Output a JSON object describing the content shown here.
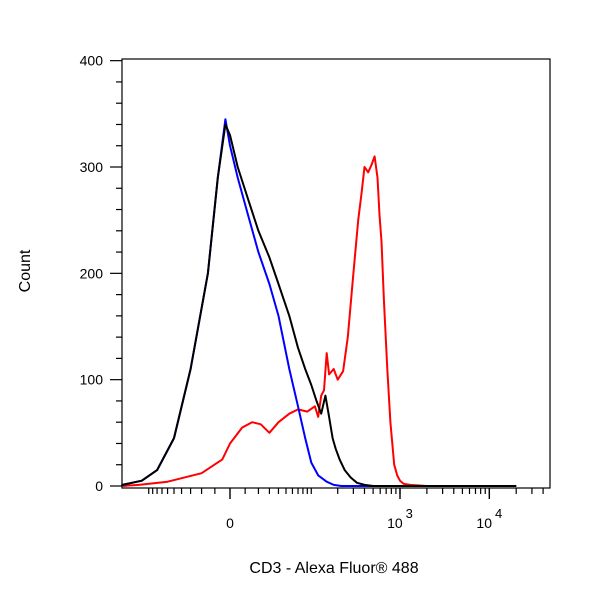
{
  "chart_data": {
    "type": "line",
    "title": "",
    "xlabel": "CD3 - Alexa Fluor® 488",
    "ylabel": "Count",
    "x_scale": "biexponential",
    "x_ticks": [
      {
        "value": 0,
        "base": "0",
        "exp": ""
      },
      {
        "value": 1000,
        "base": "10",
        "exp": "3"
      },
      {
        "value": 10000,
        "base": "10",
        "exp": "4"
      }
    ],
    "ylim": [
      0,
      400
    ],
    "y_ticks": [
      "0",
      "100",
      "200",
      "300",
      "400"
    ],
    "grid": false,
    "legend": "none",
    "series": [
      {
        "color": "#ff0000",
        "x": [
          -500,
          -130,
          -60,
          -20,
          -5,
          0,
          8,
          15,
          22,
          30,
          40,
          55,
          70,
          90,
          110,
          120,
          130,
          140,
          150,
          160,
          180,
          200,
          230,
          260,
          300,
          340,
          370,
          400,
          440,
          480,
          520,
          560,
          590,
          620,
          660,
          720,
          780,
          860,
          930,
          1000,
          1100,
          1300,
          2000,
          20000
        ],
        "y": [
          0,
          1,
          4,
          12,
          25,
          40,
          55,
          60,
          58,
          50,
          60,
          68,
          72,
          70,
          75,
          65,
          85,
          90,
          125,
          105,
          110,
          100,
          108,
          140,
          200,
          250,
          275,
          300,
          295,
          302,
          310,
          290,
          255,
          230,
          175,
          110,
          60,
          20,
          10,
          5,
          2,
          1,
          0,
          0
        ]
      },
      {
        "color": "#0000ff",
        "x": [
          -500,
          -200,
          -120,
          -80,
          -50,
          -30,
          -15,
          -8,
          -3,
          0,
          5,
          12,
          20,
          30,
          40,
          55,
          70,
          85,
          100,
          120,
          150,
          180,
          220,
          300,
          20000
        ],
        "y": [
          0,
          1,
          5,
          15,
          45,
          110,
          200,
          290,
          345,
          320,
          290,
          255,
          220,
          190,
          160,
          110,
          75,
          45,
          22,
          10,
          4,
          1,
          0,
          0,
          0
        ]
      },
      {
        "color": "#000000",
        "x": [
          -500,
          -200,
          -120,
          -80,
          -50,
          -30,
          -15,
          -8,
          -3,
          0,
          5,
          12,
          20,
          30,
          40,
          55,
          70,
          85,
          100,
          115,
          130,
          145,
          160,
          175,
          190,
          210,
          240,
          280,
          330,
          400,
          500,
          20000
        ],
        "y": [
          0,
          1,
          5,
          15,
          45,
          110,
          200,
          290,
          340,
          330,
          300,
          270,
          240,
          215,
          190,
          160,
          130,
          110,
          95,
          80,
          68,
          85,
          65,
          45,
          35,
          25,
          15,
          8,
          3,
          1,
          0,
          0
        ]
      }
    ]
  }
}
